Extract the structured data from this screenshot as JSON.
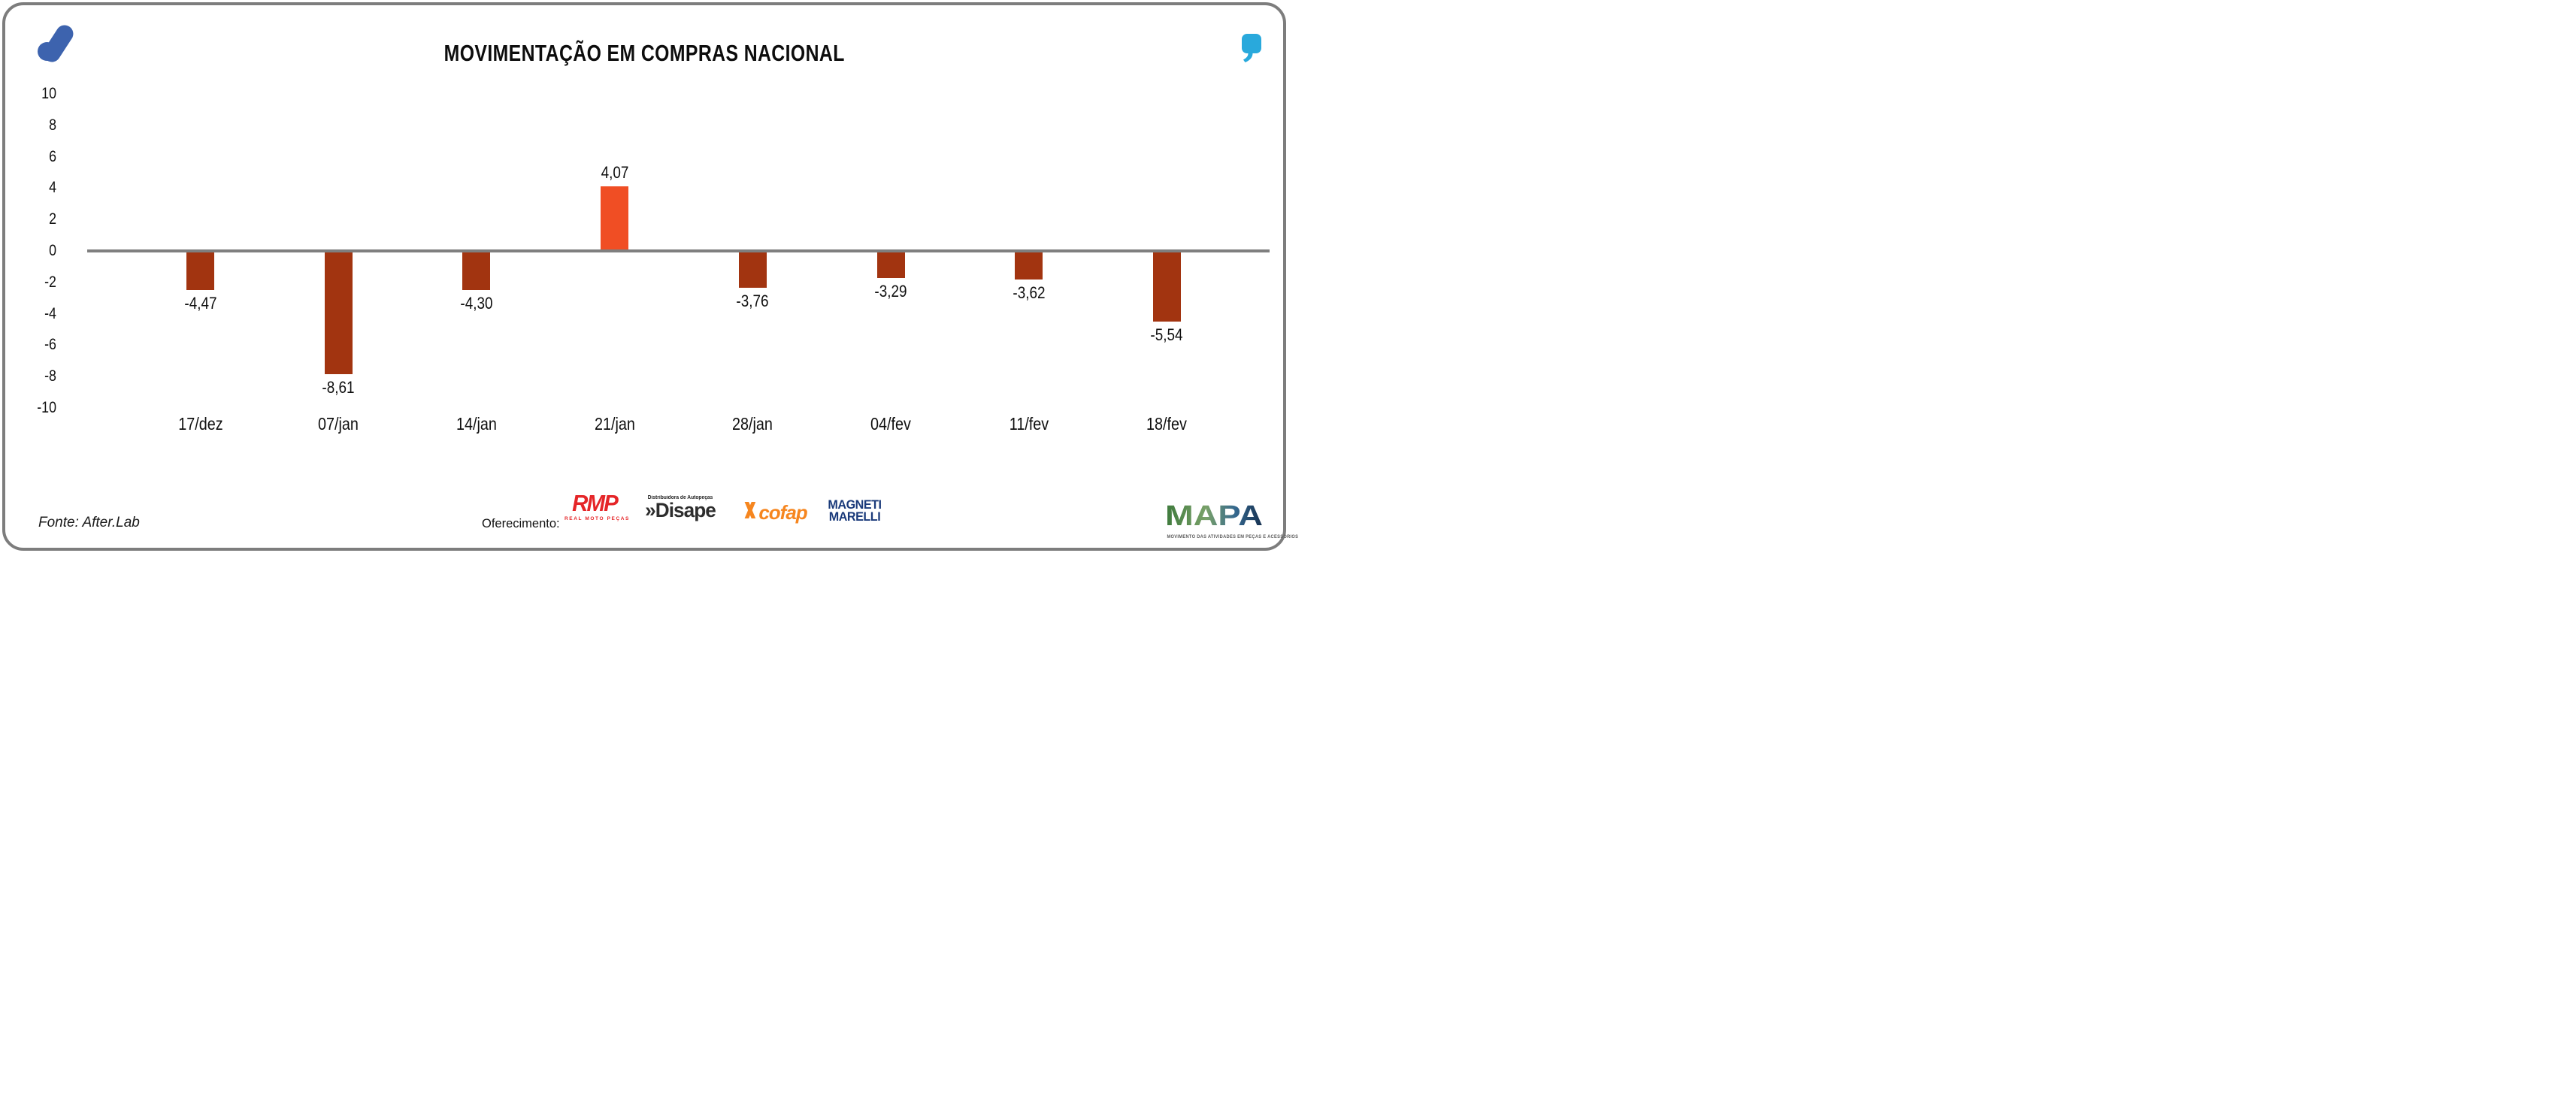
{
  "header": {
    "title": "MOVIMENTAÇÃO EM COMPRAS NACIONAL"
  },
  "chart_data": {
    "type": "bar",
    "title": "MOVIMENTAÇÃO EM COMPRAS NACIONAL",
    "categories": [
      "17/dez",
      "07/jan",
      "14/jan",
      "21/jan",
      "28/jan",
      "04/fev",
      "11/fev",
      "18/fev"
    ],
    "values": [
      -4.47,
      -8.61,
      -4.3,
      4.07,
      -3.76,
      -3.29,
      -3.62,
      -5.54
    ],
    "value_labels": [
      "-4,47",
      "-8,61",
      "-4,30",
      "4,07",
      "-3,76",
      "-3,29",
      "-3,62",
      "-5,54"
    ],
    "drawn_values_note": "bar heights as drawn in the source image are not proportional to labels",
    "drawn_values": [
      -2.4,
      -7.75,
      -2.4,
      4.0,
      -2.25,
      -1.65,
      -1.72,
      -4.4
    ],
    "ylim": [
      -10,
      10
    ],
    "yticks": [
      10,
      8,
      6,
      4,
      2,
      0,
      -2,
      -4,
      -6,
      -8,
      -10
    ],
    "ytick_labels": [
      "10",
      "8",
      "6",
      "4",
      "2",
      "0",
      "-2",
      "-4",
      "-6",
      "-8",
      "-10"
    ],
    "xlabel": "",
    "ylabel": "",
    "grid": false,
    "legend": false,
    "bar_colors": {
      "positive": "#F04E24",
      "negative": "#A23410"
    },
    "axis_line_color": "#7F7F7F"
  },
  "footer": {
    "fonte": "Fonte: After.Lab",
    "oferecimento_label": "Oferecimento:",
    "sponsors": {
      "rmp": {
        "name": "RMP",
        "subtitle": "REAL MOTO PEÇAS",
        "color": "#E52528"
      },
      "disape": {
        "prefix": "»",
        "name": "Disape",
        "subtitle": "Distribuidora de Autopeças",
        "color": "#2D2D2D"
      },
      "cofap": {
        "name": "cofap",
        "color": "#F6861F"
      },
      "magneti": {
        "line1": "MAGNETI",
        "line2": "MARELLI",
        "color": "#1A3A7A"
      }
    },
    "mapa": {
      "name": "MAPA",
      "tagline": "MOVIMENTO DAS ATIVIDADES EM PEÇAS E ACESSÓRIOS"
    }
  },
  "brand_colors": {
    "afterlab_blue": "#3D63AE",
    "quote_cyan": "#29A9DC",
    "card_border_gray": "#7D7D7D"
  }
}
